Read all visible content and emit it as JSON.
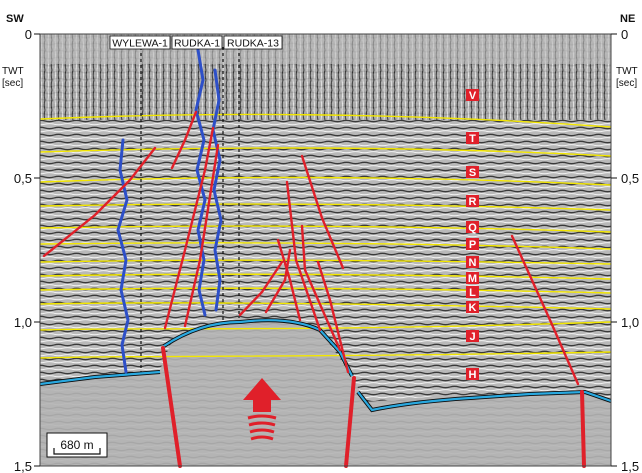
{
  "corner_left": "SW",
  "corner_right": "NE",
  "axis_unit": [
    "TWT",
    "[sec]"
  ],
  "ticks": [
    "0",
    "0,5",
    "1,0",
    "1,5"
  ],
  "wells": [
    "WYLEWA-1",
    "RUDKA-1",
    "RUDKA-13"
  ],
  "horizons": [
    "V",
    "T",
    "S",
    "R",
    "Q",
    "P",
    "N",
    "M",
    "L",
    "K",
    "J",
    "H"
  ],
  "scale_label": "680 m",
  "colors": {
    "horizon": "#f2e600",
    "fault": "#e0202a",
    "top_surface": "#29a9e0",
    "well_log": "#2d4fc8",
    "letter_bg": "#e0202a",
    "letter_fg": "#ffffff"
  }
}
